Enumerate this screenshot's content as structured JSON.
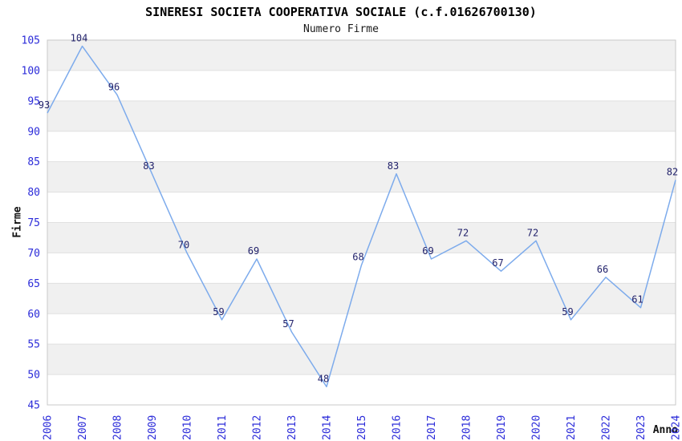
{
  "chart_data": {
    "type": "line",
    "title": "SINERESI SOCIETA COOPERATIVA SOCIALE (c.f.01626700130)",
    "subtitle": "Numero Firme",
    "xlabel": "Anno",
    "ylabel": "Firme",
    "categories": [
      "2006",
      "2007",
      "2008",
      "2009",
      "2010",
      "2011",
      "2012",
      "2013",
      "2014",
      "2015",
      "2016",
      "2017",
      "2018",
      "2019",
      "2020",
      "2021",
      "2022",
      "2023",
      "2024"
    ],
    "values": [
      93,
      104,
      96,
      83,
      70,
      59,
      69,
      57,
      48,
      68,
      83,
      69,
      72,
      67,
      72,
      59,
      66,
      61,
      82
    ],
    "ylim": [
      45,
      105
    ],
    "ytick_step": 5,
    "grid": true,
    "legend_position": "none",
    "colors": {
      "line": "#7dabec",
      "tick_labels": "#2b2bd9",
      "value_labels": "#22226b",
      "band": "#f0f0f0",
      "gridline": "#e0e0e0",
      "plot_border": "#c9c9c9",
      "title_text": "#000000",
      "subtitle_text": "#1a1a1a",
      "background": "#ffffff"
    }
  }
}
